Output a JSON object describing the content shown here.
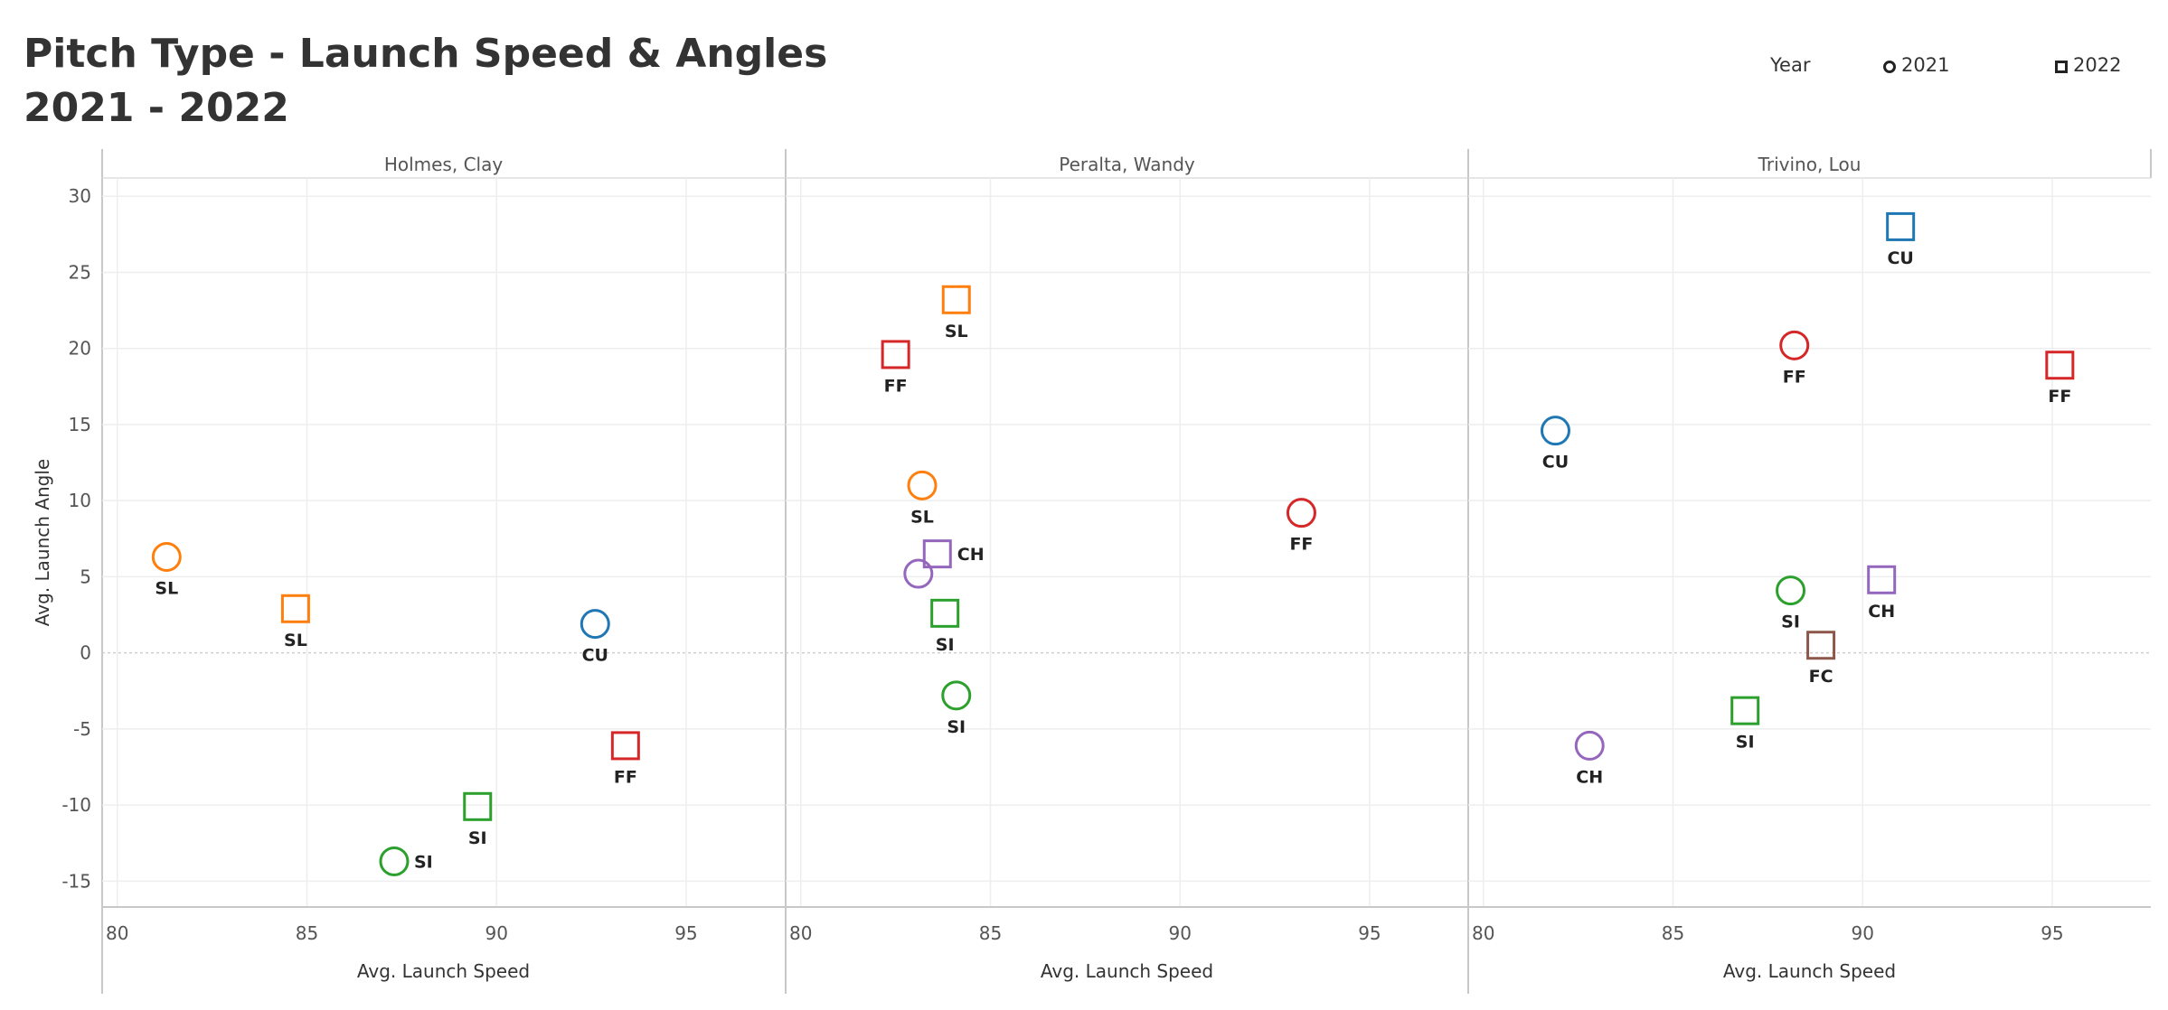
{
  "title_line1": "Pitch Type - Launch Speed & Angles",
  "title_line2": "2021 - 2022",
  "legend": {
    "title": "Year",
    "items": [
      {
        "label": "2021",
        "shape": "circle"
      },
      {
        "label": "2022",
        "shape": "square"
      }
    ]
  },
  "colors": {
    "FF": "#d62728",
    "SL": "#ff7f0e",
    "CU": "#1f77b4",
    "SI": "#2ca02c",
    "CH": "#9467bd",
    "FC": "#8c564b"
  },
  "chart_data": {
    "type": "scatter",
    "xlabel": "Avg. Launch Speed",
    "ylabel": "Avg. Launch Angle",
    "xlim": [
      79.6,
      97.6
    ],
    "ylim": [
      -16.7,
      31.2
    ],
    "xticks": [
      80,
      85,
      90,
      95
    ],
    "yticks": [
      30,
      25,
      20,
      15,
      10,
      5,
      0,
      -5,
      -10,
      -15
    ],
    "grid": true,
    "legend_position": "top-right",
    "panels": [
      {
        "name": "Holmes, Clay",
        "points": [
          {
            "pitch": "SL",
            "year": "2021",
            "x": 81.3,
            "y": 6.3,
            "label_pos": "below"
          },
          {
            "pitch": "SL",
            "year": "2022",
            "x": 84.7,
            "y": 2.9,
            "label_pos": "below"
          },
          {
            "pitch": "CU",
            "year": "2021",
            "x": 92.6,
            "y": 1.9,
            "label_pos": "below"
          },
          {
            "pitch": "FF",
            "year": "2022",
            "x": 93.4,
            "y": -6.1,
            "label_pos": "below"
          },
          {
            "pitch": "SI",
            "year": "2022",
            "x": 89.5,
            "y": -10.1,
            "label_pos": "below"
          },
          {
            "pitch": "SI",
            "year": "2021",
            "x": 87.3,
            "y": -13.7,
            "label_pos": "right"
          }
        ]
      },
      {
        "name": "Peralta, Wandy",
        "points": [
          {
            "pitch": "SL",
            "year": "2022",
            "x": 84.1,
            "y": 23.2,
            "label_pos": "below"
          },
          {
            "pitch": "FF",
            "year": "2022",
            "x": 82.5,
            "y": 19.6,
            "label_pos": "below"
          },
          {
            "pitch": "SL",
            "year": "2021",
            "x": 83.2,
            "y": 11.0,
            "label_pos": "below"
          },
          {
            "pitch": "FF",
            "year": "2021",
            "x": 93.2,
            "y": 9.2,
            "label_pos": "below"
          },
          {
            "pitch": "CH",
            "year": "2022",
            "x": 83.6,
            "y": 6.5,
            "label_pos": "right"
          },
          {
            "pitch": "CH",
            "year": "2021",
            "x": 83.1,
            "y": 5.2,
            "label_pos": "none"
          },
          {
            "pitch": "SI",
            "year": "2022",
            "x": 83.8,
            "y": 2.6,
            "label_pos": "below"
          },
          {
            "pitch": "SI",
            "year": "2021",
            "x": 84.1,
            "y": -2.8,
            "label_pos": "below"
          }
        ]
      },
      {
        "name": "Trivino, Lou",
        "points": [
          {
            "pitch": "CU",
            "year": "2022",
            "x": 91.0,
            "y": 28.0,
            "label_pos": "below"
          },
          {
            "pitch": "FF",
            "year": "2021",
            "x": 88.2,
            "y": 20.2,
            "label_pos": "below"
          },
          {
            "pitch": "FF",
            "year": "2022",
            "x": 95.2,
            "y": 18.9,
            "label_pos": "below"
          },
          {
            "pitch": "CU",
            "year": "2021",
            "x": 81.9,
            "y": 14.6,
            "label_pos": "below"
          },
          {
            "pitch": "CH",
            "year": "2022",
            "x": 90.5,
            "y": 4.8,
            "label_pos": "below"
          },
          {
            "pitch": "SI",
            "year": "2021",
            "x": 88.1,
            "y": 4.1,
            "label_pos": "below"
          },
          {
            "pitch": "FC",
            "year": "2022",
            "x": 88.9,
            "y": 0.5,
            "label_pos": "below"
          },
          {
            "pitch": "SI",
            "year": "2022",
            "x": 86.9,
            "y": -3.8,
            "label_pos": "below"
          },
          {
            "pitch": "CH",
            "year": "2021",
            "x": 82.8,
            "y": -6.1,
            "label_pos": "below"
          }
        ]
      }
    ]
  }
}
